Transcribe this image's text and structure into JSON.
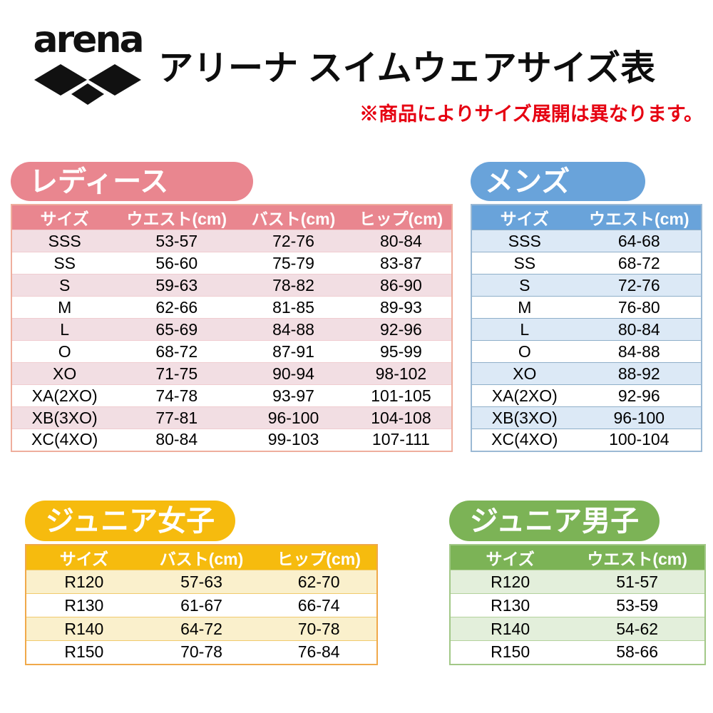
{
  "header": {
    "logo_text": "arena",
    "title": "アリーナ スイムウェアサイズ表",
    "note": "※商品によりサイズ展開は異なります。"
  },
  "colors": {
    "ladies_theme": "#e9868f",
    "ladies_row": "#f2dee3",
    "mens_theme": "#69a3da",
    "mens_row": "#dce9f6",
    "junior_girls_theme": "#f6bb0e",
    "junior_girls_row": "#faf0cc",
    "junior_boys_theme": "#7cb356",
    "junior_boys_row": "#e3efdb",
    "note_red": "#e60011",
    "logo_black": "#111111"
  },
  "tables": {
    "ladies": {
      "label": "レディース",
      "columns": [
        "サイズ",
        "ウエスト(cm)",
        "バスト(cm)",
        "ヒップ(cm)"
      ],
      "rows": [
        [
          "SSS",
          "53-57",
          "72-76",
          "80-84"
        ],
        [
          "SS",
          "56-60",
          "75-79",
          "83-87"
        ],
        [
          "S",
          "59-63",
          "78-82",
          "86-90"
        ],
        [
          "M",
          "62-66",
          "81-85",
          "89-93"
        ],
        [
          "L",
          "65-69",
          "84-88",
          "92-96"
        ],
        [
          "O",
          "68-72",
          "87-91",
          "95-99"
        ],
        [
          "XO",
          "71-75",
          "90-94",
          "98-102"
        ],
        [
          "XA(2XO)",
          "74-78",
          "93-97",
          "101-105"
        ],
        [
          "XB(3XO)",
          "77-81",
          "96-100",
          "104-108"
        ],
        [
          "XC(4XO)",
          "80-84",
          "99-103",
          "107-111"
        ]
      ]
    },
    "mens": {
      "label": "メンズ",
      "columns": [
        "サイズ",
        "ウエスト(cm)"
      ],
      "rows": [
        [
          "SSS",
          "64-68"
        ],
        [
          "SS",
          "68-72"
        ],
        [
          "S",
          "72-76"
        ],
        [
          "M",
          "76-80"
        ],
        [
          "L",
          "80-84"
        ],
        [
          "O",
          "84-88"
        ],
        [
          "XO",
          "88-92"
        ],
        [
          "XA(2XO)",
          "92-96"
        ],
        [
          "XB(3XO)",
          "96-100"
        ],
        [
          "XC(4XO)",
          "100-104"
        ]
      ]
    },
    "junior_girls": {
      "label": "ジュニア女子",
      "columns": [
        "サイズ",
        "バスト(cm)",
        "ヒップ(cm)"
      ],
      "rows": [
        [
          "R120",
          "57-63",
          "62-70"
        ],
        [
          "R130",
          "61-67",
          "66-74"
        ],
        [
          "R140",
          "64-72",
          "70-78"
        ],
        [
          "R150",
          "70-78",
          "76-84"
        ]
      ]
    },
    "junior_boys": {
      "label": "ジュニア男子",
      "columns": [
        "サイズ",
        "ウエスト(cm)"
      ],
      "rows": [
        [
          "R120",
          "51-57"
        ],
        [
          "R130",
          "53-59"
        ],
        [
          "R140",
          "54-62"
        ],
        [
          "R150",
          "58-66"
        ]
      ]
    }
  }
}
